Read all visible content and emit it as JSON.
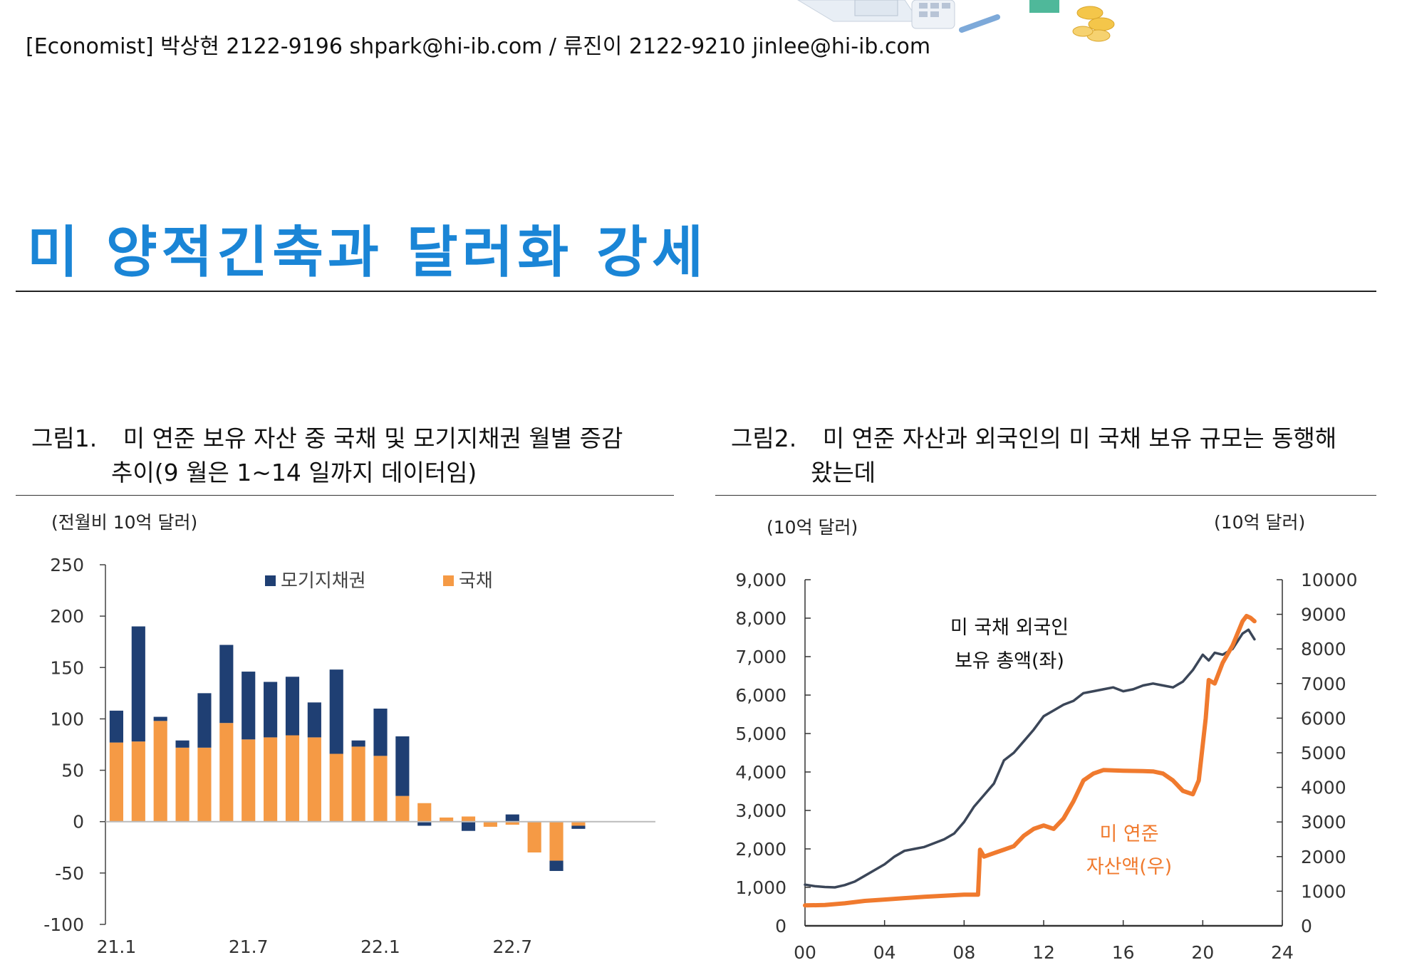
{
  "header": {
    "authors_line": "[Economist] 박상현 2122-9196 shpark@hi-ib.com / 류진이 2122-9210 jinlee@hi-ib.com"
  },
  "page": {
    "title": "미 양적긴축과 달러화 강세"
  },
  "figure1": {
    "caption_num": "그림1.",
    "caption_line1": "미 연준 보유 자산 중 국채 및 모기지채권 월별 증감",
    "caption_line2": "추이(9 월은 1~14 일까지 데이터임)"
  },
  "figure2": {
    "caption_num": "그림2.",
    "caption_line1": "미 연준 자산과 외국인의 미 국채 보유 규모는 동행해",
    "caption_line2": "왔는데"
  },
  "colors": {
    "accent_title": "#1a85d6",
    "mbs": "#1f3f73",
    "treasury": "#f59a45",
    "foreign_line": "#3b4658",
    "fed_line": "#f07a2e"
  },
  "chart_data": [
    {
      "type": "bar",
      "stacked": true,
      "unit_label": "(전월비 10억 달러)",
      "ylim": [
        -100,
        250
      ],
      "yticks": [
        "250",
        "200",
        "150",
        "100",
        "50",
        "0",
        "-50",
        "-100"
      ],
      "xtick_labels": [
        "21.1",
        "21.7",
        "22.1",
        "22.7"
      ],
      "categories": [
        "21.1",
        "21.2",
        "21.3",
        "21.4",
        "21.5",
        "21.6",
        "21.7",
        "21.8",
        "21.9",
        "21.10",
        "21.11",
        "21.12",
        "22.1",
        "22.2",
        "22.3",
        "22.4",
        "22.5",
        "22.6",
        "22.7",
        "22.8",
        "22.9",
        "22.10",
        "22.11",
        "22.12",
        "23.1"
      ],
      "series": [
        {
          "name": "국채",
          "values": [
            77,
            78,
            98,
            72,
            72,
            96,
            80,
            82,
            84,
            82,
            66,
            73,
            64,
            25,
            18,
            4,
            5,
            -5,
            -3,
            -30,
            -38,
            -4,
            0,
            0,
            0
          ]
        },
        {
          "name": "모기지채권",
          "values": [
            31,
            112,
            4,
            7,
            53,
            76,
            66,
            54,
            57,
            34,
            82,
            6,
            46,
            58,
            -4,
            0,
            -9,
            0,
            7,
            0,
            -10,
            -3,
            0,
            0,
            0
          ]
        }
      ],
      "legend": [
        "모기지채권",
        "국채"
      ],
      "legend_placement": "top"
    },
    {
      "type": "line",
      "left_unit_label": "(10억 달러)",
      "right_unit_label": "(10억 달러)",
      "ylim_left": [
        0,
        9000
      ],
      "ylim_right": [
        0,
        10000
      ],
      "yticks_left": [
        "9,000",
        "8,000",
        "7,000",
        "6,000",
        "5,000",
        "4,000",
        "3,000",
        "2,000",
        "1,000",
        "0"
      ],
      "yticks_right": [
        "10000",
        "9000",
        "8000",
        "7000",
        "6000",
        "5000",
        "4000",
        "3000",
        "2000",
        "1000",
        "0"
      ],
      "xticks": [
        "00",
        "04",
        "08",
        "12",
        "16",
        "20",
        "24"
      ],
      "xlim": [
        2000,
        2024
      ],
      "annotation_foreign_1": "미 국채 외국인",
      "annotation_foreign_2": "보유 총액(좌)",
      "annotation_fed_1": "미 연준",
      "annotation_fed_2": "자산액(우)",
      "series": [
        {
          "name": "미 국채 외국인 보유 총액(좌)",
          "axis": "left",
          "x": [
            2000,
            2000.5,
            2001,
            2001.5,
            2002,
            2002.5,
            2003,
            2003.5,
            2004,
            2004.5,
            2005,
            2005.5,
            2006,
            2006.5,
            2007,
            2007.5,
            2008,
            2008.5,
            2009,
            2009.5,
            2010,
            2010.5,
            2011,
            2011.5,
            2012,
            2012.5,
            2013,
            2013.5,
            2014,
            2014.5,
            2015,
            2015.5,
            2016,
            2016.5,
            2017,
            2017.5,
            2018,
            2018.5,
            2019,
            2019.5,
            2020,
            2020.3,
            2020.6,
            2021,
            2021.5,
            2022,
            2022.3,
            2022.6
          ],
          "y": [
            1070,
            1030,
            1010,
            1000,
            1060,
            1150,
            1300,
            1450,
            1600,
            1800,
            1950,
            2000,
            2050,
            2150,
            2250,
            2400,
            2700,
            3100,
            3400,
            3700,
            4300,
            4500,
            4800,
            5100,
            5450,
            5600,
            5750,
            5850,
            6050,
            6100,
            6150,
            6200,
            6100,
            6150,
            6250,
            6300,
            6250,
            6200,
            6350,
            6650,
            7050,
            6900,
            7100,
            7050,
            7200,
            7600,
            7700,
            7450
          ]
        },
        {
          "name": "미 연준 자산액(우)",
          "axis": "right",
          "x": [
            2000,
            2001,
            2002,
            2003,
            2004,
            2005,
            2006,
            2007,
            2008,
            2008.7,
            2008.8,
            2009,
            2009.5,
            2010,
            2010.5,
            2011,
            2011.5,
            2012,
            2012.5,
            2013,
            2013.5,
            2014,
            2014.5,
            2015,
            2016,
            2017,
            2017.5,
            2018,
            2018.5,
            2019,
            2019.5,
            2019.8,
            2020.15,
            2020.3,
            2020.6,
            2021,
            2021.5,
            2022,
            2022.2,
            2022.4,
            2022.6
          ],
          "y": [
            590,
            600,
            650,
            720,
            760,
            800,
            840,
            870,
            900,
            900,
            2200,
            2000,
            2100,
            2200,
            2300,
            2600,
            2800,
            2900,
            2800,
            3100,
            3600,
            4200,
            4400,
            4500,
            4480,
            4470,
            4460,
            4400,
            4200,
            3900,
            3800,
            4200,
            6000,
            7100,
            7000,
            7600,
            8100,
            8800,
            8950,
            8900,
            8800
          ]
        }
      ]
    }
  ]
}
